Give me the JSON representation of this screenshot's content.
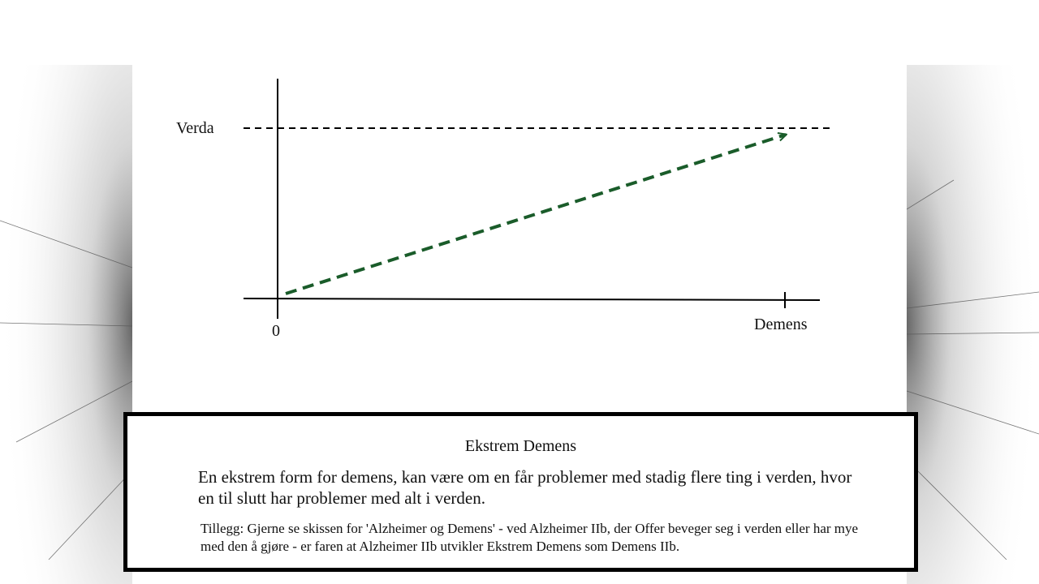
{
  "diagram": {
    "y_axis_label": "Verda",
    "x_axis_label": "Demens",
    "origin_label": "0",
    "colors": {
      "axis": "#000000",
      "reference_line": "#000000",
      "trend_arrow": "#1a5c2a"
    }
  },
  "info_box": {
    "title": "Ekstrem Demens",
    "description": "En ekstrem form for demens, kan være om en får problemer med stadig flere ting i verden, hvor en til slutt har problemer med alt i verden.",
    "note": "Tillegg: Gjerne se skissen for 'Alzheimer og Demens' - ved Alzheimer IIb, der Offer beveger seg i verden eller har mye med den å gjøre - er faren at Alzheimer IIb utvikler Ekstrem Demens som Demens IIb."
  }
}
